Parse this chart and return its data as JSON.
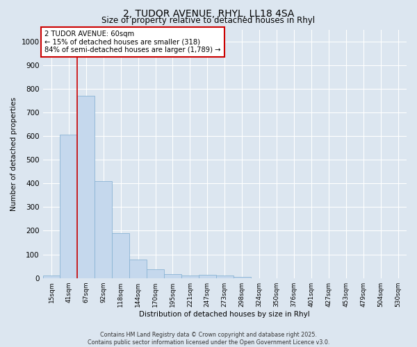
{
  "title_line1": "2, TUDOR AVENUE, RHYL, LL18 4SA",
  "title_line2": "Size of property relative to detached houses in Rhyl",
  "xlabel": "Distribution of detached houses by size in Rhyl",
  "ylabel": "Number of detached properties",
  "bins": [
    "15sqm",
    "41sqm",
    "67sqm",
    "92sqm",
    "118sqm",
    "144sqm",
    "170sqm",
    "195sqm",
    "221sqm",
    "247sqm",
    "273sqm",
    "298sqm",
    "324sqm",
    "350sqm",
    "376sqm",
    "401sqm",
    "427sqm",
    "453sqm",
    "479sqm",
    "504sqm",
    "530sqm"
  ],
  "values": [
    12,
    605,
    770,
    410,
    190,
    77,
    37,
    18,
    10,
    13,
    10,
    5,
    0,
    0,
    0,
    0,
    0,
    0,
    0,
    0,
    0
  ],
  "bar_color": "#c5d8ed",
  "bar_edge_color": "#8ab4d4",
  "background_color": "#dce6f0",
  "grid_color": "#ffffff",
  "red_line_x": 1.5,
  "annotation_text_line1": "2 TUDOR AVENUE: 60sqm",
  "annotation_text_line2": "← 15% of detached houses are smaller (318)",
  "annotation_text_line3": "84% of semi-detached houses are larger (1,789) →",
  "annotation_box_color": "#ffffff",
  "annotation_box_edge_color": "#cc0000",
  "ylim": [
    0,
    1050
  ],
  "yticks": [
    0,
    100,
    200,
    300,
    400,
    500,
    600,
    700,
    800,
    900,
    1000
  ],
  "footer_line1": "Contains HM Land Registry data © Crown copyright and database right 2025.",
  "footer_line2": "Contains public sector information licensed under the Open Government Licence v3.0."
}
